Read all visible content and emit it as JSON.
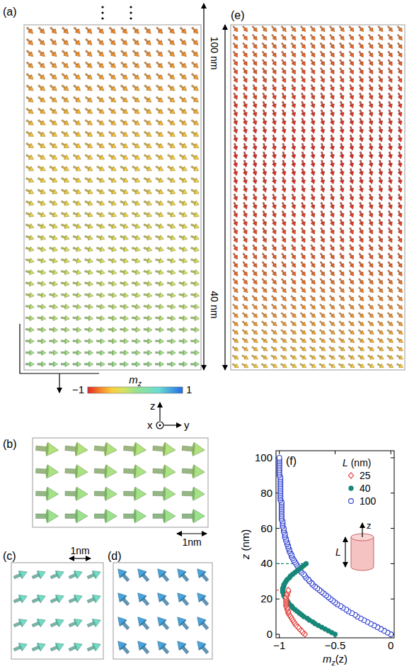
{
  "panels": {
    "a": {
      "letter": "(a)",
      "length_label": "100 nm"
    },
    "b": {
      "letter": "(b)",
      "scale_label": "1nm"
    },
    "c": {
      "letter": "(c)",
      "scale_label": "1nm"
    },
    "d": {
      "letter": "(d)"
    },
    "e": {
      "letter": "(e)",
      "length_label": "40 nm"
    },
    "f": {
      "letter": "(f)"
    }
  },
  "colorbar": {
    "label": {
      "text": "m",
      "sub": "z"
    },
    "range": [
      -1,
      1
    ],
    "ticks": [
      {
        "value": -1,
        "label": "−1"
      },
      1
    ]
  },
  "axes_icon": {
    "z": "z",
    "x": "x",
    "y": "y"
  },
  "chart_data": {
    "type": "scatter",
    "xlabel": {
      "text": "m",
      "sub": "z",
      "after": "(z)"
    },
    "ylabel": {
      "text": "z",
      "after": " (nm)"
    },
    "xlim": [
      -1.03,
      0.03
    ],
    "xticks": [
      {
        "value": -1,
        "label": "−1"
      },
      {
        "value": -0.5,
        "label": "−0.5"
      },
      0
    ],
    "ylim": [
      -2,
      104
    ],
    "yticks": [
      0,
      20,
      40,
      60,
      80,
      100
    ],
    "legend": "upper right",
    "legend_title": {
      "text": "L",
      "after": " (nm)"
    },
    "inset": {
      "axis": "z",
      "length": "L"
    },
    "series": [
      {
        "name": "25",
        "color": "#e3342f",
        "marker": "open-diamond",
        "line_style": "dashed",
        "x": [
          -0.77,
          -0.79,
          -0.8,
          -0.82,
          -0.83,
          -0.85,
          -0.86,
          -0.87,
          -0.88,
          -0.89,
          -0.9,
          -0.91,
          -0.92,
          -0.92,
          -0.93,
          -0.93,
          -0.94,
          -0.94,
          -0.94,
          -0.94,
          -0.94,
          -0.94,
          -0.93,
          -0.93,
          -0.92,
          -0.92
        ],
        "values": [
          0,
          1,
          2,
          3,
          4,
          5,
          6,
          7,
          8,
          9,
          10,
          11,
          12,
          13,
          14,
          15,
          16,
          17,
          18,
          19,
          20,
          21,
          22,
          23,
          24,
          25
        ]
      },
      {
        "name": "40",
        "color": "#17877a",
        "marker": "filled-circle",
        "line_style": "dashed",
        "x": [
          -0.5,
          -0.53,
          -0.56,
          -0.59,
          -0.62,
          -0.65,
          -0.68,
          -0.7,
          -0.73,
          -0.75,
          -0.78,
          -0.8,
          -0.82,
          -0.84,
          -0.86,
          -0.88,
          -0.89,
          -0.91,
          -0.92,
          -0.93,
          -0.94,
          -0.95,
          -0.96,
          -0.96,
          -0.97,
          -0.97,
          -0.97,
          -0.96,
          -0.96,
          -0.95,
          -0.94,
          -0.93,
          -0.91,
          -0.9,
          -0.88,
          -0.86,
          -0.84,
          -0.82,
          -0.8,
          -0.78,
          -0.76
        ],
        "values": [
          0,
          1,
          2,
          3,
          4,
          5,
          6,
          7,
          8,
          9,
          10,
          11,
          12,
          13,
          14,
          15,
          16,
          17,
          18,
          19,
          20,
          21,
          22,
          23,
          24,
          25,
          26,
          27,
          28,
          29,
          30,
          31,
          32,
          33,
          34,
          35,
          36,
          37,
          38,
          39,
          40
        ]
      },
      {
        "name": "100",
        "color": "#2b3ccf",
        "marker": "open-circle",
        "x": [
          0,
          -0.03,
          -0.06,
          -0.09,
          -0.12,
          -0.15,
          -0.18,
          -0.21,
          -0.24,
          -0.27,
          -0.3,
          -0.32,
          -0.35,
          -0.38,
          -0.4,
          -0.43,
          -0.45,
          -0.48,
          -0.5,
          -0.52,
          -0.54,
          -0.56,
          -0.58,
          -0.6,
          -0.62,
          -0.64,
          -0.66,
          -0.68,
          -0.7,
          -0.71,
          -0.73,
          -0.74,
          -0.76,
          -0.77,
          -0.78,
          -0.8,
          -0.81,
          -0.82,
          -0.83,
          -0.84,
          -0.85,
          -0.86,
          -0.87,
          -0.88,
          -0.89,
          -0.89,
          -0.9,
          -0.91,
          -0.91,
          -0.92,
          -0.92,
          -0.93,
          -0.93,
          -0.94,
          -0.94,
          -0.95,
          -0.95,
          -0.95,
          -0.96,
          -0.96,
          -0.96,
          -0.97,
          -0.97,
          -0.97,
          -0.97,
          -0.98,
          -0.98,
          -0.98,
          -0.98,
          -0.98,
          -0.98,
          -0.98,
          -0.98,
          -0.98,
          -0.98,
          -0.98,
          -0.99,
          -0.99,
          -0.99,
          -0.99,
          -0.99,
          -0.99,
          -0.99,
          -0.99,
          -0.99,
          -0.99,
          -0.99,
          -0.99,
          -0.99,
          -0.99,
          -1,
          -1,
          -1,
          -1,
          -1,
          -1,
          -1,
          -1,
          -1,
          -1,
          -1
        ],
        "values": [
          0,
          1,
          2,
          3,
          4,
          5,
          6,
          7,
          8,
          9,
          10,
          11,
          12,
          13,
          14,
          15,
          16,
          17,
          18,
          19,
          20,
          21,
          22,
          23,
          24,
          25,
          26,
          27,
          28,
          29,
          30,
          31,
          32,
          33,
          34,
          35,
          36,
          37,
          38,
          39,
          40,
          41,
          42,
          43,
          44,
          45,
          46,
          47,
          48,
          49,
          50,
          51,
          52,
          53,
          54,
          55,
          56,
          57,
          58,
          59,
          60,
          61,
          62,
          63,
          64,
          65,
          66,
          67,
          68,
          69,
          70,
          71,
          72,
          73,
          74,
          75,
          76,
          77,
          78,
          79,
          80,
          81,
          82,
          83,
          84,
          85,
          86,
          87,
          88,
          89,
          90,
          91,
          92,
          93,
          94,
          95,
          96,
          97,
          98,
          99,
          100
        ]
      }
    ]
  }
}
